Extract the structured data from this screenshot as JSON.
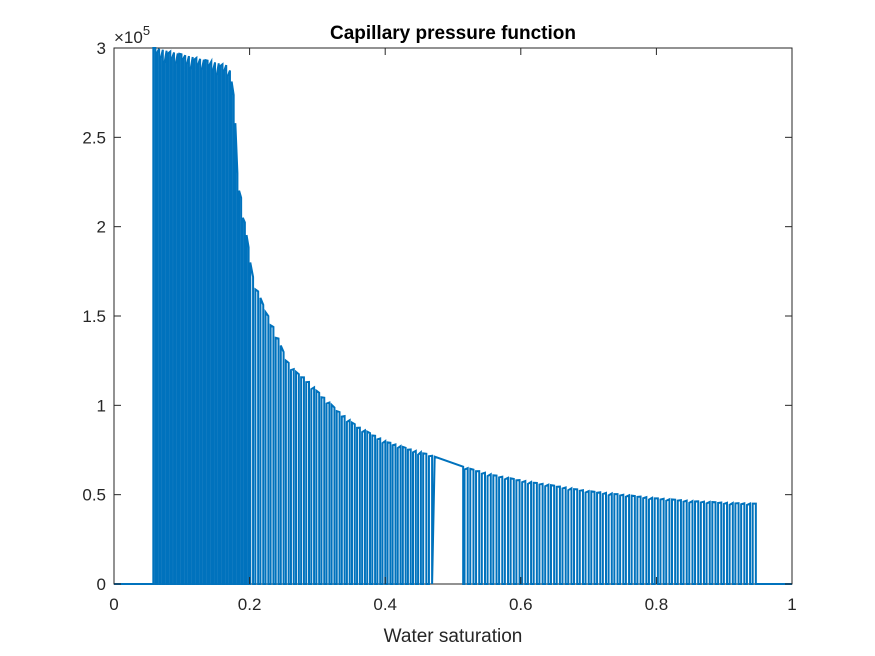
{
  "chart_data": {
    "type": "line",
    "title": "Capillary pressure function",
    "xlabel": "Water saturation",
    "ylabel": "",
    "xlim": [
      0,
      1
    ],
    "ylim": [
      0,
      300000
    ],
    "y_exponent_label": "×10",
    "y_exponent_power": "5",
    "x_ticks": [
      0,
      0.2,
      0.4,
      0.6,
      0.8,
      1
    ],
    "x_tick_labels": [
      "0",
      "0.2",
      "0.4",
      "0.6",
      "0.8",
      "1"
    ],
    "y_ticks": [
      0,
      50000,
      100000,
      150000,
      200000,
      250000,
      300000
    ],
    "y_tick_labels": [
      "0",
      "0.5",
      "1",
      "1.5",
      "2",
      "2.5",
      "3"
    ],
    "grid": false,
    "series": [
      {
        "color": "#0072bd",
        "description_points": [
          {
            "x": 0.061,
            "y": 300000
          },
          {
            "x": 0.17,
            "y": 290000
          },
          {
            "x": 0.178,
            "y": 270000
          },
          {
            "x": 0.182,
            "y": 230000
          },
          {
            "x": 0.19,
            "y": 210000
          },
          {
            "x": 0.205,
            "y": 172000
          },
          {
            "x": 0.218,
            "y": 158000
          },
          {
            "x": 0.23,
            "y": 148000
          },
          {
            "x": 0.24,
            "y": 140000
          },
          {
            "x": 0.255,
            "y": 125000
          },
          {
            "x": 0.27,
            "y": 118000
          },
          {
            "x": 0.283,
            "y": 115000
          },
          {
            "x": 0.3,
            "y": 108000
          },
          {
            "x": 0.33,
            "y": 97000
          },
          {
            "x": 0.36,
            "y": 88000
          },
          {
            "x": 0.4,
            "y": 80000
          },
          {
            "x": 0.44,
            "y": 75000
          },
          {
            "x": 0.46,
            "y": 73000
          },
          {
            "x": 0.52,
            "y": 65000
          },
          {
            "x": 0.56,
            "y": 61000
          },
          {
            "x": 0.6,
            "y": 58000
          },
          {
            "x": 0.65,
            "y": 55000
          },
          {
            "x": 0.7,
            "y": 52000
          },
          {
            "x": 0.75,
            "y": 50000
          },
          {
            "x": 0.8,
            "y": 48000
          },
          {
            "x": 0.85,
            "y": 46500
          },
          {
            "x": 0.9,
            "y": 45500
          },
          {
            "x": 0.94,
            "y": 45000
          }
        ],
        "spike_range": [
          0.058,
          0.945
        ],
        "gap_ranges": [
          [
            0.468,
            0.515
          ]
        ],
        "baseline": 0
      }
    ]
  }
}
